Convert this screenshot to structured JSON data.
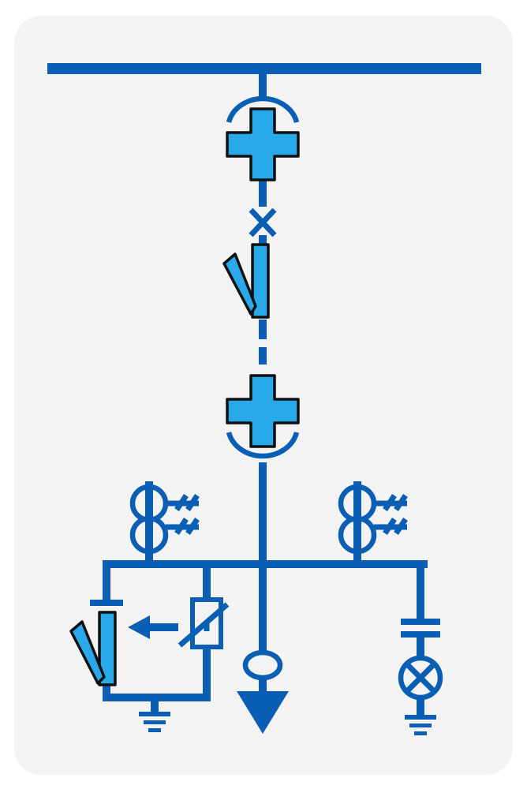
{
  "diagram": {
    "type": "single-line electrical switchgear diagram",
    "colors": {
      "line": "#0a5fb5",
      "contact": "#29a9ea",
      "outline": "#111111",
      "panel": "#f3f3f4",
      "page": "#ffffff"
    },
    "components": [
      {
        "name": "main-busbar-icon",
        "kind": "busbar"
      },
      {
        "name": "upper-plug-in-contact-icon",
        "kind": "withdrawable contact"
      },
      {
        "name": "circuit-breaker-icon",
        "kind": "circuit breaker"
      },
      {
        "name": "disconnector-switch-icon",
        "kind": "disconnector"
      },
      {
        "name": "lower-plug-in-contact-icon",
        "kind": "withdrawable contact"
      },
      {
        "name": "current-transformer-left-icon",
        "kind": "current transformer"
      },
      {
        "name": "current-transformer-right-icon",
        "kind": "current transformer"
      },
      {
        "name": "earthing-switch-icon",
        "kind": "earthing switch"
      },
      {
        "name": "surge-arrester-icon",
        "kind": "surge arrester"
      },
      {
        "name": "cable-current-transformer-icon",
        "kind": "zero-sequence CT"
      },
      {
        "name": "cable-outgoing-arrow-icon",
        "kind": "cable outgoing feeder"
      },
      {
        "name": "capacitor-icon",
        "kind": "capacitor"
      },
      {
        "name": "indicator-lamp-icon",
        "kind": "voltage indicator lamp"
      },
      {
        "name": "ground-left-icon",
        "kind": "earth"
      },
      {
        "name": "ground-right-icon",
        "kind": "earth"
      }
    ]
  }
}
